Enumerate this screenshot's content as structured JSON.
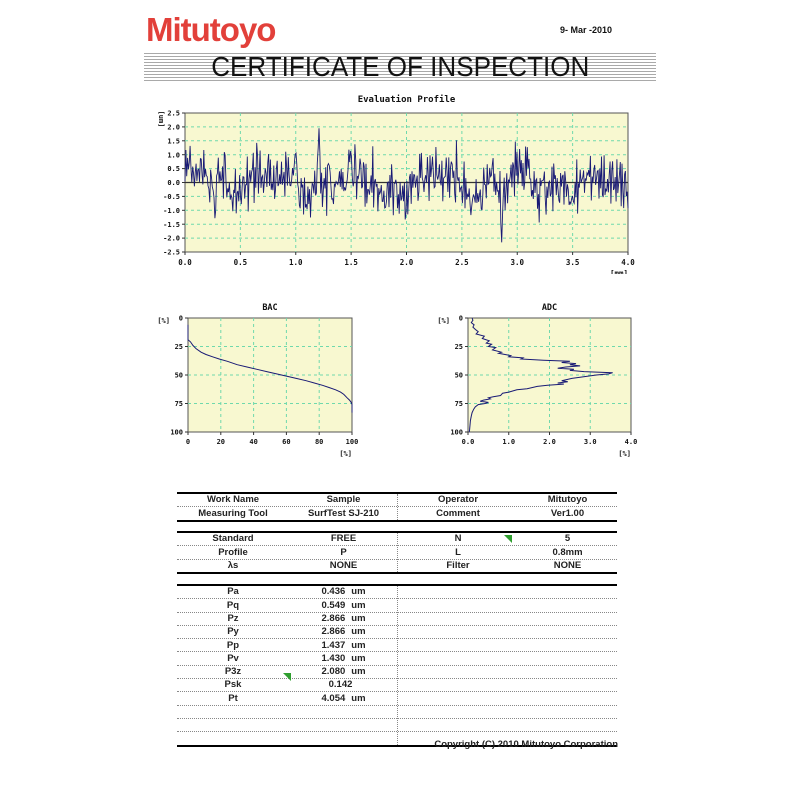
{
  "header": {
    "logo": "Mitutoyo",
    "date": "9- Mar -2010",
    "title": "CERTIFICATE OF INSPECTION"
  },
  "footer": {
    "copyright": "Copyright (C) 2010 Mitutoyo Corporation"
  },
  "colors": {
    "logo_red": "#e2403a",
    "chart_bg": "#f8f8d0",
    "grid_green": "#6fd9ac",
    "trace_navy": "#191a75",
    "axis_dark": "#555555",
    "zero_line": "#333333",
    "cursor_green": "#2f9e2f"
  },
  "icons": {
    "green_cursor": "small green triangle cursor marker"
  },
  "chart_data": [
    {
      "id": "profile",
      "type": "line",
      "title": "Evaluation Profile",
      "ylabel": "[um]",
      "xlabel": "[mm]",
      "xlim": [
        0.0,
        4.0
      ],
      "ylim": [
        -2.5,
        2.5
      ],
      "xticks": [
        "0.0",
        "0.5",
        "1.0",
        "1.5",
        "2.0",
        "2.5",
        "3.0",
        "3.5",
        "4.0"
      ],
      "yticks": [
        "2.5",
        "2.0",
        "1.5",
        "1.0",
        "0.5",
        "0.0",
        "-0.5",
        "-1.0",
        "-1.5",
        "-2.0",
        "-2.5"
      ],
      "grid": "dashed",
      "zero_line": true,
      "trace_recreation": {
        "seed": 9,
        "points": 520,
        "amplitude_um": 0.55,
        "peak_um": 1.95,
        "peak_x_mm": 1.21,
        "valley_um": -2.15,
        "valley_x_mm": 2.86
      }
    },
    {
      "id": "bac",
      "type": "line",
      "title": "BAC",
      "ylabel": "[%]",
      "xlabel": "[%]",
      "xlim": [
        0,
        100
      ],
      "ylim_top_to_bottom": [
        0,
        100
      ],
      "xticks": [
        "0",
        "20",
        "40",
        "60",
        "80",
        "100"
      ],
      "yticks": [
        "0",
        "25",
        "50",
        "75",
        "100"
      ],
      "grid": "dashed",
      "points": [
        [
          0,
          6
        ],
        [
          0,
          19
        ],
        [
          1.5,
          21
        ],
        [
          3,
          24
        ],
        [
          5,
          27
        ],
        [
          8,
          30
        ],
        [
          11,
          32
        ],
        [
          15,
          34
        ],
        [
          19,
          36
        ],
        [
          24,
          38
        ],
        [
          30,
          41
        ],
        [
          36,
          43
        ],
        [
          42,
          45
        ],
        [
          48,
          47
        ],
        [
          54,
          49
        ],
        [
          60,
          51
        ],
        [
          66,
          53
        ],
        [
          72,
          55
        ],
        [
          77,
          57
        ],
        [
          82,
          59
        ],
        [
          86,
          61
        ],
        [
          90,
          63
        ],
        [
          93,
          65
        ],
        [
          95,
          67
        ],
        [
          97,
          70
        ],
        [
          98.5,
          72
        ],
        [
          99.5,
          74
        ],
        [
          100,
          76
        ],
        [
          100,
          83
        ]
      ]
    },
    {
      "id": "adc",
      "type": "line",
      "title": "ADC",
      "ylabel": "[%]",
      "xlabel": "[%]",
      "xlim": [
        0.0,
        4.0
      ],
      "ylim_top_to_bottom": [
        0,
        100
      ],
      "xticks": [
        "0.0",
        "1.0",
        "2.0",
        "3.0",
        "4.0"
      ],
      "yticks": [
        "0",
        "25",
        "50",
        "75",
        "100"
      ],
      "grid": "dashed",
      "points": [
        [
          0.1,
          0
        ],
        [
          0.12,
          2
        ],
        [
          0.08,
          4
        ],
        [
          0.15,
          6
        ],
        [
          0.12,
          8
        ],
        [
          0.18,
          10
        ],
        [
          0.25,
          12
        ],
        [
          0.2,
          14
        ],
        [
          0.4,
          16
        ],
        [
          0.35,
          18
        ],
        [
          0.52,
          20
        ],
        [
          0.45,
          22
        ],
        [
          0.58,
          23
        ],
        [
          0.5,
          25
        ],
        [
          0.68,
          26
        ],
        [
          0.6,
          28
        ],
        [
          0.82,
          30
        ],
        [
          0.75,
          31
        ],
        [
          1.05,
          33
        ],
        [
          1.0,
          34
        ],
        [
          1.35,
          35
        ],
        [
          1.3,
          36
        ],
        [
          1.85,
          37
        ],
        [
          2.5,
          38
        ],
        [
          2.3,
          39
        ],
        [
          2.65,
          40
        ],
        [
          2.5,
          41
        ],
        [
          2.75,
          42
        ],
        [
          2.4,
          43
        ],
        [
          2.2,
          44
        ],
        [
          2.6,
          45
        ],
        [
          2.5,
          46
        ],
        [
          2.85,
          47
        ],
        [
          3.55,
          48
        ],
        [
          3.45,
          49
        ],
        [
          3.15,
          50
        ],
        [
          2.95,
          51
        ],
        [
          2.75,
          52
        ],
        [
          2.55,
          53
        ],
        [
          2.3,
          55
        ],
        [
          2.45,
          56
        ],
        [
          2.2,
          57
        ],
        [
          2.35,
          58
        ],
        [
          1.95,
          59
        ],
        [
          1.7,
          60
        ],
        [
          1.45,
          62
        ],
        [
          1.2,
          63
        ],
        [
          1.0,
          65
        ],
        [
          0.85,
          66
        ],
        [
          0.8,
          68
        ],
        [
          0.62,
          69
        ],
        [
          0.5,
          70
        ],
        [
          0.55,
          71
        ],
        [
          0.38,
          72
        ],
        [
          0.3,
          73
        ],
        [
          0.5,
          74
        ],
        [
          0.42,
          75
        ],
        [
          0.25,
          76
        ],
        [
          0.18,
          78
        ],
        [
          0.14,
          80
        ],
        [
          0.1,
          83
        ],
        [
          0.08,
          86
        ],
        [
          0.06,
          90
        ],
        [
          0.05,
          94
        ],
        [
          0.04,
          98
        ],
        [
          0.03,
          100
        ]
      ]
    }
  ],
  "tables": {
    "info": {
      "rows": [
        [
          "Work Name",
          "Sample",
          "Operator",
          "Mitutoyo"
        ],
        [
          "Measuring Tool",
          "SurfTest SJ-210",
          "Comment",
          "Ver1.00"
        ]
      ]
    },
    "conditions": {
      "rows": [
        [
          "Standard",
          "FREE",
          "N",
          "5"
        ],
        [
          "Profile",
          "P",
          "L",
          "0.8mm"
        ],
        [
          "λs",
          "NONE",
          "Filter",
          "NONE"
        ]
      ]
    },
    "results": {
      "rows": [
        {
          "name": "Pa",
          "value": "0.436",
          "unit": "um"
        },
        {
          "name": "Pq",
          "value": "0.549",
          "unit": "um"
        },
        {
          "name": "Pz",
          "value": "2.866",
          "unit": "um"
        },
        {
          "name": "Py",
          "value": "2.866",
          "unit": "um"
        },
        {
          "name": "Pp",
          "value": "1.437",
          "unit": "um"
        },
        {
          "name": "Pv",
          "value": "1.430",
          "unit": "um"
        },
        {
          "name": "P3z",
          "value": "2.080",
          "unit": "um"
        },
        {
          "name": "Psk",
          "value": "0.142",
          "unit": ""
        },
        {
          "name": "Pt",
          "value": "4.054",
          "unit": "um"
        }
      ],
      "empty_row_count": 3
    }
  }
}
